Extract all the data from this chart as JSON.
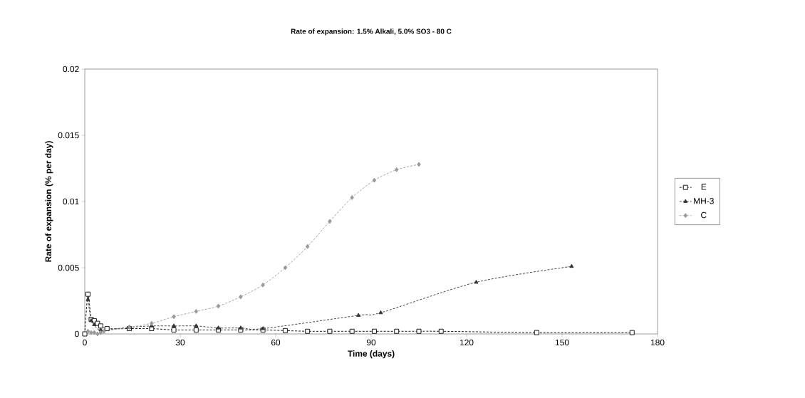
{
  "chart_data": {
    "type": "line",
    "title": "Rate of expansion: 1.5% Alkali, 5.0% SO3 - 80 C",
    "xlabel": "Time (days)",
    "ylabel": "Rate of expansion (% per day)",
    "xlim": [
      0,
      180
    ],
    "xticks": [
      0,
      30,
      60,
      90,
      120,
      150,
      180
    ],
    "ylim": [
      0,
      0.02
    ],
    "yticks": [
      0,
      0.005,
      0.01,
      0.015,
      0.02
    ],
    "grid": false,
    "legend": "right",
    "line_style": "dashed",
    "series": [
      {
        "name": "E",
        "color": "#000000",
        "marker": "square",
        "x": [
          0,
          1,
          2,
          3,
          4,
          5,
          7,
          14,
          21,
          28,
          35,
          42,
          49,
          56,
          63,
          70,
          77,
          84,
          91,
          98,
          105,
          112,
          142,
          172
        ],
        "values": [
          0,
          0.003,
          0.0011,
          0.001,
          0.0008,
          0.0006,
          0.0004,
          0.0004,
          0.0004,
          0.0003,
          0.0003,
          0.0003,
          0.0003,
          0.0003,
          0.00025,
          0.0002,
          0.0002,
          0.0002,
          0.0002,
          0.0002,
          0.0002,
          0.0002,
          0.0001,
          0.0001
        ]
      },
      {
        "name": "MH-3",
        "color": "#333333",
        "marker": "triangle",
        "x": [
          1,
          2,
          3,
          5,
          14,
          21,
          28,
          35,
          42,
          49,
          56,
          86,
          93,
          123,
          153
        ],
        "values": [
          0.0026,
          0.001,
          0.0007,
          0.0003,
          0.0005,
          0.0006,
          0.0006,
          0.0006,
          0.00045,
          0.00045,
          0.0004,
          0.0014,
          0.0016,
          0.0039,
          0.0051
        ]
      },
      {
        "name": "C",
        "color": "#999999",
        "marker": "diamond",
        "x": [
          1,
          2,
          3,
          4,
          5,
          6,
          14,
          21,
          28,
          35,
          42,
          49,
          56,
          63,
          70,
          77,
          84,
          91,
          98,
          105
        ],
        "values": [
          0.0002,
          0.0001,
          0.0001,
          0,
          0.0001,
          0.0002,
          0.0005,
          0.0008,
          0.0013,
          0.0017,
          0.0021,
          0.0028,
          0.0037,
          0.005,
          0.0066,
          0.0085,
          0.0103,
          0.0116,
          0.0124,
          0.0128
        ]
      }
    ]
  }
}
